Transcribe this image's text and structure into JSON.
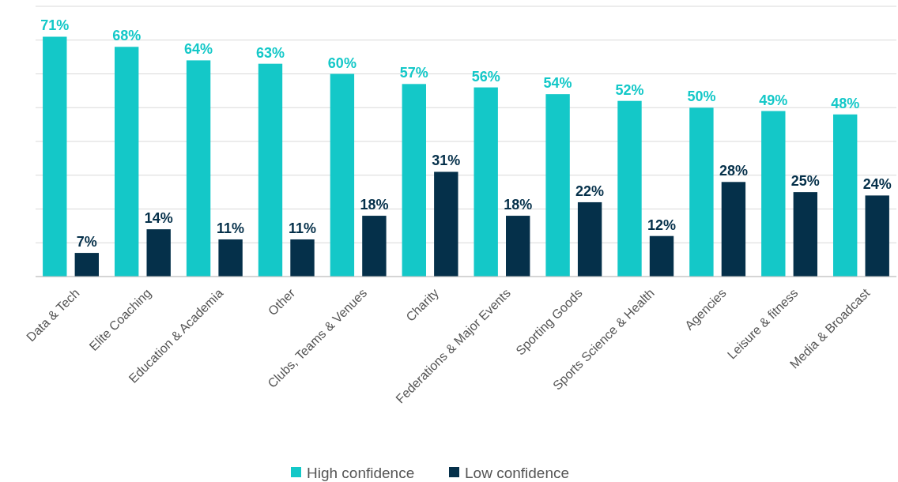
{
  "chart_data": {
    "type": "bar",
    "categories": [
      "Data & Tech",
      "Elite Coaching",
      "Education & Academia",
      "Other",
      "Clubs, Teams & Venues",
      "Charity",
      "Federations & Major Events",
      "Sporting Goods",
      "Sports Science & Health",
      "Agencies",
      "Leisure & fitness",
      "Media & Broadcast"
    ],
    "series": [
      {
        "name": "High confidence",
        "color": "#14c8c8",
        "values": [
          71,
          68,
          64,
          63,
          60,
          57,
          56,
          54,
          52,
          50,
          49,
          48
        ],
        "value_labels": [
          "71%",
          "68%",
          "64%",
          "63%",
          "60%",
          "57%",
          "56%",
          "54%",
          "52%",
          "50%",
          "49%",
          "48%"
        ]
      },
      {
        "name": "Low confidence",
        "color": "#05304a",
        "values": [
          7,
          14,
          11,
          11,
          18,
          31,
          18,
          22,
          12,
          28,
          25,
          24
        ],
        "value_labels": [
          "7%",
          "14%",
          "11%",
          "11%",
          "18%",
          "31%",
          "18%",
          "22%",
          "12%",
          "28%",
          "25%",
          "24%"
        ]
      }
    ],
    "ylim": [
      0,
      80
    ],
    "yticks": [
      {
        "value": 0,
        "label": null
      },
      {
        "value": 10,
        "label": null
      },
      {
        "value": 20,
        "label": null
      },
      {
        "value": 30,
        "label": null
      },
      {
        "value": 40,
        "label": null
      },
      {
        "value": 50,
        "label": null
      },
      {
        "value": 60,
        "label": null
      },
      {
        "value": 70,
        "label": null
      },
      {
        "value": 80,
        "label": null
      }
    ],
    "grid": "y",
    "tick_labels": "x",
    "legend": "bottom"
  }
}
